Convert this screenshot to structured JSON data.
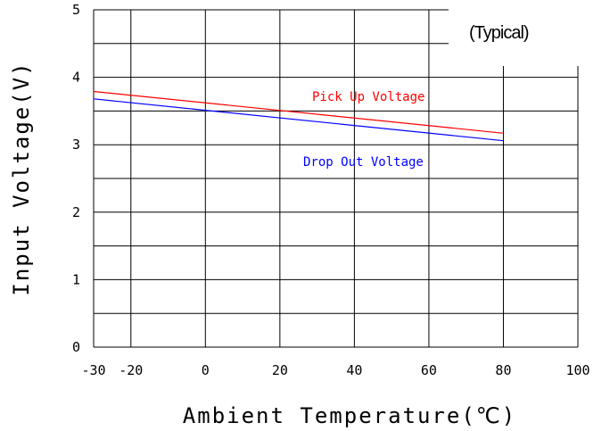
{
  "chart_data": {
    "type": "line",
    "title": "",
    "annotation": "(Typical)",
    "xlabel": "Ambient Temperature(℃)",
    "ylabel": "Input Voltage(V)",
    "xlim": [
      -30,
      100
    ],
    "ylim": [
      0,
      5
    ],
    "x_ticks": [
      -30,
      -20,
      0,
      20,
      40,
      60,
      80,
      100
    ],
    "y_ticks": [
      0,
      1,
      2,
      3,
      4,
      5
    ],
    "grid": true,
    "series": [
      {
        "name": "Pick Up Voltage",
        "color": "#ff0000",
        "x": [
          -30,
          80
        ],
        "y": [
          3.79,
          3.17
        ]
      },
      {
        "name": "Drop Out Voltage",
        "color": "#0000ff",
        "x": [
          -30,
          80
        ],
        "y": [
          3.68,
          3.06
        ]
      }
    ]
  }
}
